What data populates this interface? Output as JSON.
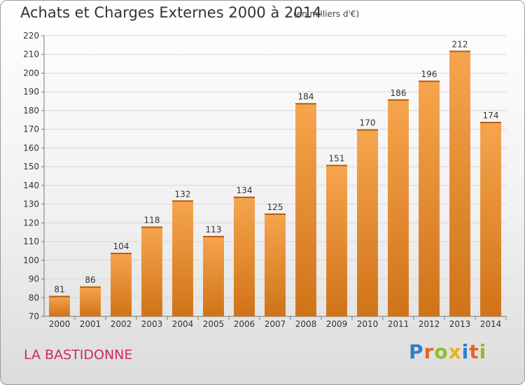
{
  "header": {
    "title": "Achats et Charges Externes 2000 à 2014",
    "unit": "(en milliers d'€)"
  },
  "footer": {
    "place": "LA BASTIDONNE",
    "logo": [
      "P",
      "r",
      "o",
      "x",
      "i",
      "t",
      "i"
    ]
  },
  "colors": {
    "bar_top": "#f6a54e",
    "bar_bottom": "#d07318",
    "place": "#cc2b5e",
    "logo": [
      "#2f7fc7",
      "#e2662a",
      "#8cbf28",
      "#e8b21b",
      "#2f7fc7",
      "#e2662a",
      "#8cbf28"
    ]
  },
  "chart_data": {
    "type": "bar",
    "categories": [
      "2000",
      "2001",
      "2002",
      "2003",
      "2004",
      "2005",
      "2006",
      "2007",
      "2008",
      "2009",
      "2010",
      "2011",
      "2012",
      "2013",
      "2014"
    ],
    "values": [
      81,
      86,
      104,
      118,
      132,
      113,
      134,
      125,
      184,
      151,
      170,
      186,
      196,
      212,
      174
    ],
    "data_labels": [
      "81",
      "86",
      "104",
      "118",
      "132",
      "113",
      "134",
      "125",
      "184",
      "151",
      "170",
      "186",
      "196",
      "212",
      "174"
    ],
    "ylim": [
      70,
      220
    ],
    "yticks": [
      "70",
      "80",
      "90",
      "100",
      "110",
      "120",
      "130",
      "140",
      "150",
      "160",
      "170",
      "180",
      "190",
      "200",
      "210",
      "220"
    ],
    "grid": true,
    "legend": "none"
  }
}
